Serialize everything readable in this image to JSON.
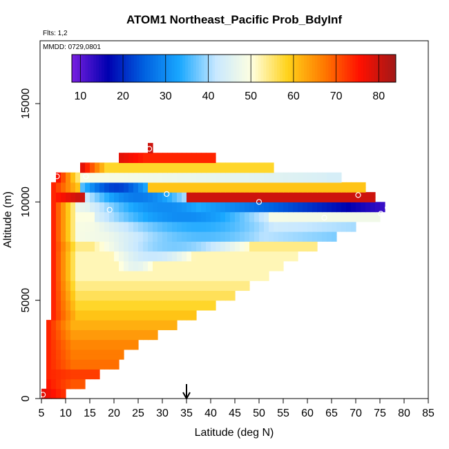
{
  "chart_data": {
    "type": "heatmap",
    "title": "ATOM1 Northeast_Pacific Prob_BdyInf",
    "subtitle_flts": "Flts: 1,2",
    "subtitle_mmdd": "MMDD: 0729,0801",
    "xlabel": "Latitude (deg N)",
    "ylabel": "Altitude (m)",
    "xlim": [
      5,
      85
    ],
    "ylim": [
      0,
      18000
    ],
    "xticks": [
      "5",
      "10",
      "15",
      "20",
      "25",
      "30",
      "35",
      "40",
      "45",
      "50",
      "55",
      "60",
      "65",
      "70",
      "75",
      "80",
      "85"
    ],
    "yticks": [
      "0",
      "5000",
      "10000",
      "15000"
    ],
    "colorbar": {
      "range": [
        8,
        84
      ],
      "ticks": [
        "10",
        "20",
        "30",
        "40",
        "50",
        "60",
        "70",
        "80"
      ],
      "colors": [
        "#7a1fe0",
        "#0000b0",
        "#0060e0",
        "#1aa8ff",
        "#c8e8ff",
        "#ffffe0",
        "#ffd21a",
        "#ff7a00",
        "#ff1000",
        "#a01818"
      ]
    },
    "arrow_latitude": 35,
    "grid": false,
    "legend": "colorbar-top",
    "cell_size": {
      "dlat": 1.0,
      "dalt": 250
    },
    "rows": [
      {
        "z": [
          0,
          500
        ],
        "lat": [
          5,
          10
        ],
        "v": [
          78,
          72
        ]
      },
      {
        "z": [
          500,
          1000
        ],
        "lat": [
          6,
          14
        ],
        "v": [
          75,
          70
        ]
      },
      {
        "z": [
          1000,
          1500
        ],
        "lat": [
          6,
          17
        ],
        "v": [
          74,
          72
        ]
      },
      {
        "z": [
          1500,
          2000
        ],
        "lat": [
          6,
          21
        ],
        "v": [
          74,
          68
        ]
      },
      {
        "z": [
          2000,
          2500
        ],
        "lat": [
          6,
          22
        ],
        "v": [
          74,
          67
        ]
      },
      {
        "z": [
          2500,
          3000
        ],
        "lat": [
          6,
          25
        ],
        "v": [
          74,
          66
        ]
      },
      {
        "z": [
          3000,
          3500
        ],
        "lat": [
          6,
          29
        ],
        "v": [
          74,
          64
        ]
      },
      {
        "z": [
          3500,
          4000
        ],
        "lat": [
          6,
          33
        ],
        "v": [
          74,
          62
        ]
      },
      {
        "z": [
          4000,
          4500
        ],
        "lat": [
          7,
          37
        ],
        "v": [
          74,
          60
        ]
      },
      {
        "z": [
          4500,
          5000
        ],
        "lat": [
          7,
          41
        ],
        "v": [
          74,
          58
        ]
      },
      {
        "z": [
          5000,
          5500
        ],
        "lat": [
          7,
          45
        ],
        "v": [
          74,
          56
        ]
      },
      {
        "z": [
          5500,
          6000
        ],
        "lat": [
          7,
          48
        ],
        "v": [
          74,
          54
        ]
      },
      {
        "z": [
          6000,
          6500
        ],
        "lat": [
          7,
          52
        ],
        "v": [
          74,
          52
        ]
      },
      {
        "z": [
          6500,
          7000
        ],
        "lat": [
          7,
          55
        ],
        "v": [
          74,
          52
        ]
      },
      {
        "z": [
          7000,
          7500
        ],
        "lat": [
          7,
          58
        ],
        "v": [
          74,
          52
        ]
      },
      {
        "z": [
          7500,
          8000
        ],
        "lat": [
          7,
          62
        ],
        "v": [
          74,
          54
        ]
      },
      {
        "z": [
          8000,
          8500
        ],
        "lat": [
          7,
          66
        ],
        "v": [
          74,
          38
        ]
      },
      {
        "z": [
          8500,
          9000
        ],
        "lat": [
          7,
          70
        ],
        "v": [
          74,
          40
        ]
      },
      {
        "z": [
          9000,
          9500
        ],
        "lat": [
          7,
          75
        ],
        "v": [
          74,
          48
        ]
      },
      {
        "z": [
          9500,
          10000
        ],
        "lat": [
          7,
          76
        ],
        "v": [
          74,
          12
        ]
      },
      {
        "z": [
          10000,
          10500
        ],
        "lat": [
          7,
          74
        ],
        "v": [
          74,
          80
        ]
      },
      {
        "z": [
          10500,
          11000
        ],
        "lat": [
          7,
          72
        ],
        "v": [
          74,
          60
        ]
      },
      {
        "z": [
          11000,
          11500
        ],
        "lat": [
          8,
          67
        ],
        "v": [
          76,
          44
        ]
      },
      {
        "z": [
          11500,
          12000
        ],
        "lat": [
          13,
          53
        ],
        "v": [
          78,
          58
        ]
      },
      {
        "z": [
          12000,
          12500
        ],
        "lat": [
          21,
          41
        ],
        "v": [
          78,
          74
        ]
      },
      {
        "z": [
          12500,
          13000
        ],
        "lat": [
          27,
          28
        ],
        "v": [
          80,
          80
        ]
      }
    ],
    "low_prob_core": [
      {
        "z": [
          10500,
          11000
        ],
        "lat": [
          13,
          27
        ],
        "v": 22
      },
      {
        "z": [
          10000,
          10500
        ],
        "lat": [
          14,
          35
        ],
        "v": 28
      },
      {
        "z": [
          9500,
          10000
        ],
        "lat": [
          15,
          45
        ],
        "v": 30
      },
      {
        "z": [
          9000,
          9500
        ],
        "lat": [
          16,
          52
        ],
        "v": 30
      },
      {
        "z": [
          8500,
          9000
        ],
        "lat": [
          16,
          58
        ],
        "v": 34
      },
      {
        "z": [
          8000,
          8500
        ],
        "lat": [
          16,
          60
        ],
        "v": 36
      },
      {
        "z": [
          7500,
          8000
        ],
        "lat": [
          16,
          48
        ],
        "v": 38
      },
      {
        "z": [
          7000,
          7500
        ],
        "lat": [
          17,
          38
        ],
        "v": 42
      },
      {
        "z": [
          6500,
          7000
        ],
        "lat": [
          18,
          30
        ],
        "v": 46
      }
    ],
    "flight_points": [
      {
        "lat": 5.3,
        "alt": 200
      },
      {
        "lat": 8.2,
        "alt": 11300
      },
      {
        "lat": 14.2,
        "alt": 11300
      },
      {
        "lat": 19.1,
        "alt": 9600
      },
      {
        "lat": 27.3,
        "alt": 12700
      },
      {
        "lat": 30.9,
        "alt": 10400
      },
      {
        "lat": 50.0,
        "alt": 10000
      },
      {
        "lat": 63.5,
        "alt": 9200
      },
      {
        "lat": 70.5,
        "alt": 10350
      },
      {
        "lat": 74.2,
        "alt": 8600
      },
      {
        "lat": 75.2,
        "alt": 9400
      },
      {
        "lat": 76.6,
        "alt": 9700
      }
    ]
  }
}
